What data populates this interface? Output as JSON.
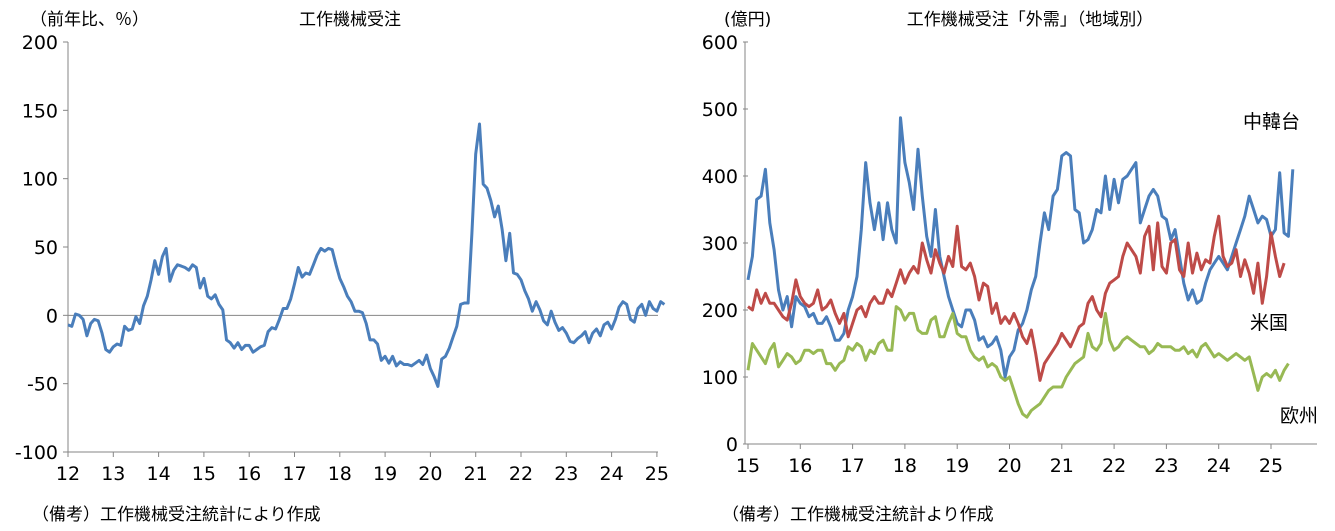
{
  "colors": {
    "blue": "#4a7ebb",
    "red": "#be4b48",
    "green": "#98b954",
    "axis": "#868686"
  },
  "left": {
    "unit": "（前年比、％）",
    "note": "（備考）工作機械受注統計により作成"
  },
  "right": {
    "unit": "(億円)",
    "note": "（備考）工作機械受注統計より作成"
  },
  "chart_data": [
    {
      "type": "line",
      "title": "工作機械受注",
      "ylabel": "（前年比、％）",
      "ylim": [
        -100,
        200
      ],
      "yticks": [
        "200",
        "150",
        "100",
        "50",
        "0",
        "-50",
        "-100"
      ],
      "xticks": [
        "12",
        "13",
        "14",
        "15",
        "16",
        "17",
        "18",
        "19",
        "20",
        "21",
        "22",
        "23",
        "24",
        "25"
      ],
      "x_start_year": 12,
      "x_step_months": 1,
      "series": [
        {
          "name": "",
          "color": "#4a7ebb",
          "values": [
            -7,
            -8,
            1,
            0,
            -3,
            -15,
            -6,
            -3,
            -4,
            -13,
            -25,
            -27,
            -23,
            -21,
            -22,
            -8,
            -11,
            -10,
            -1,
            -6,
            7,
            14,
            26,
            40,
            30,
            43,
            49,
            25,
            33,
            37,
            36,
            35,
            33,
            37,
            35,
            20,
            27,
            14,
            12,
            15,
            8,
            4,
            -18,
            -20,
            -24,
            -20,
            -25,
            -22,
            -22,
            -27,
            -25,
            -23,
            -22,
            -12,
            -9,
            -10,
            -3,
            5,
            5,
            12,
            23,
            35,
            28,
            31,
            30,
            37,
            44,
            49,
            47,
            49,
            48,
            37,
            27,
            21,
            14,
            10,
            3,
            3,
            2,
            -6,
            -18,
            -18,
            -21,
            -33,
            -30,
            -35,
            -30,
            -37,
            -34,
            -36,
            -36,
            -37,
            -35,
            -33,
            -36,
            -29,
            -39,
            -45,
            -52,
            -32,
            -30,
            -24,
            -16,
            -8,
            8,
            9,
            9,
            60,
            118,
            140,
            96,
            93,
            84,
            72,
            80,
            63,
            40,
            60,
            31,
            30,
            26,
            18,
            12,
            3,
            10,
            4,
            -4,
            -7,
            3,
            -5,
            -11,
            -9,
            -13,
            -19,
            -20,
            -17,
            -15,
            -12,
            -20,
            -13,
            -10,
            -15,
            -7,
            -5,
            -10,
            -3,
            6,
            10,
            8,
            -3,
            -5,
            5,
            8,
            0,
            10,
            5,
            3,
            10,
            8
          ]
        }
      ]
    },
    {
      "type": "line",
      "title": "工作機械受注「外需」（地域別）",
      "ylabel": "(億円)",
      "ylim": [
        0,
        600
      ],
      "yticks": [
        "600",
        "500",
        "400",
        "300",
        "200",
        "100",
        "0"
      ],
      "xticks": [
        "15",
        "16",
        "17",
        "18",
        "19",
        "20",
        "21",
        "22",
        "23",
        "24",
        "25"
      ],
      "x_start_year": 15,
      "x_step_months": 1,
      "series": [
        {
          "name": "中韓台",
          "color": "#4a7ebb",
          "values": [
            245,
            280,
            365,
            370,
            410,
            330,
            290,
            230,
            200,
            220,
            175,
            220,
            210,
            205,
            190,
            195,
            180,
            180,
            190,
            175,
            155,
            155,
            165,
            200,
            220,
            250,
            320,
            420,
            360,
            320,
            360,
            305,
            360,
            320,
            300,
            487,
            420,
            390,
            350,
            440,
            370,
            310,
            280,
            350,
            280,
            250,
            220,
            200,
            180,
            175,
            200,
            200,
            185,
            155,
            160,
            145,
            150,
            160,
            140,
            100,
            130,
            140,
            170,
            180,
            200,
            230,
            250,
            300,
            345,
            320,
            370,
            380,
            430,
            435,
            430,
            350,
            345,
            300,
            305,
            320,
            350,
            345,
            400,
            350,
            395,
            360,
            395,
            400,
            410,
            420,
            330,
            350,
            370,
            380,
            370,
            340,
            335,
            305,
            320,
            280,
            240,
            215,
            230,
            210,
            215,
            240,
            260,
            270,
            280,
            270,
            260,
            280,
            300,
            320,
            340,
            370,
            350,
            330,
            340,
            335,
            310,
            320,
            405,
            315,
            310,
            410
          ]
        },
        {
          "name": "米国",
          "color": "#be4b48",
          "values": [
            205,
            200,
            230,
            210,
            225,
            210,
            210,
            200,
            190,
            185,
            210,
            245,
            220,
            210,
            205,
            210,
            230,
            200,
            205,
            215,
            195,
            180,
            195,
            160,
            180,
            200,
            205,
            190,
            210,
            220,
            210,
            210,
            230,
            220,
            240,
            260,
            240,
            255,
            265,
            255,
            300,
            275,
            255,
            290,
            270,
            255,
            280,
            265,
            325,
            265,
            260,
            270,
            250,
            215,
            240,
            235,
            195,
            210,
            180,
            190,
            180,
            195,
            180,
            160,
            150,
            170,
            135,
            95,
            120,
            130,
            140,
            150,
            165,
            155,
            145,
            160,
            175,
            180,
            210,
            220,
            200,
            190,
            225,
            240,
            245,
            250,
            280,
            300,
            290,
            280,
            255,
            310,
            325,
            260,
            330,
            265,
            255,
            300,
            305,
            260,
            250,
            300,
            255,
            285,
            260,
            275,
            270,
            310,
            340,
            280,
            265,
            270,
            290,
            250,
            275,
            255,
            225,
            270,
            210,
            250,
            315,
            280,
            250,
            270
          ]
        },
        {
          "name": "欧州",
          "color": "#98b954",
          "values": [
            110,
            150,
            140,
            130,
            120,
            140,
            150,
            115,
            125,
            135,
            130,
            120,
            125,
            140,
            140,
            135,
            140,
            140,
            120,
            120,
            110,
            120,
            125,
            145,
            140,
            150,
            145,
            125,
            140,
            135,
            150,
            155,
            140,
            140,
            205,
            200,
            185,
            195,
            195,
            170,
            165,
            165,
            185,
            190,
            160,
            160,
            180,
            195,
            165,
            160,
            160,
            140,
            130,
            125,
            130,
            115,
            120,
            115,
            100,
            95,
            100,
            80,
            60,
            45,
            40,
            50,
            55,
            60,
            70,
            80,
            85,
            85,
            85,
            100,
            110,
            120,
            125,
            130,
            165,
            145,
            140,
            150,
            195,
            155,
            140,
            145,
            155,
            160,
            155,
            150,
            145,
            145,
            135,
            140,
            150,
            145,
            145,
            145,
            140,
            140,
            145,
            135,
            140,
            130,
            145,
            150,
            140,
            130,
            135,
            130,
            125,
            130,
            135,
            130,
            125,
            130,
            105,
            80,
            100,
            105,
            100,
            110,
            95,
            110,
            120
          ]
        }
      ]
    }
  ]
}
